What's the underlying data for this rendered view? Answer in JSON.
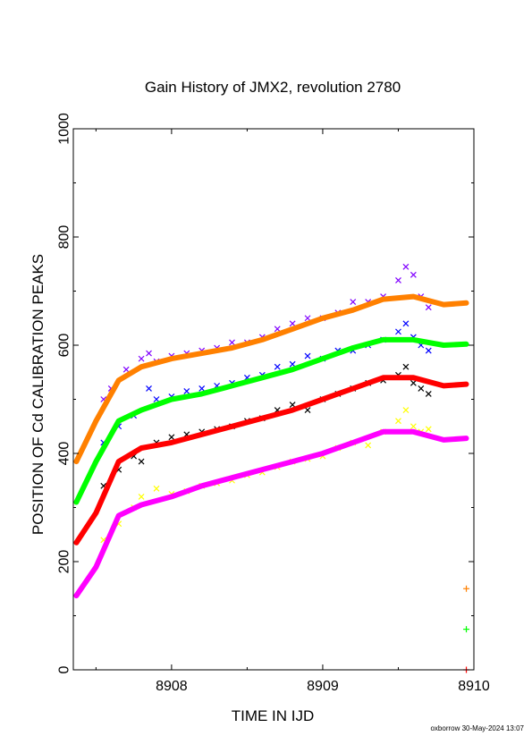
{
  "chart_data": {
    "type": "scatter",
    "title": "Gain History of JMX2, revolution 2780",
    "xlabel": "TIME IN IJD",
    "ylabel": "POSITION OF Cd CALIBRATION PEAKS",
    "xlim": [
      8907.35,
      8910.0
    ],
    "ylim": [
      0,
      1000
    ],
    "xticks": [
      8908,
      8909,
      8910
    ],
    "yticks": [
      0,
      200,
      400,
      600,
      800,
      1000
    ],
    "grid": false,
    "legend": "none",
    "fit_series": [
      {
        "color": "#ff8000",
        "x": [
          8907.37,
          8907.5,
          8907.65,
          8907.8,
          8908.0,
          8908.2,
          8908.4,
          8908.6,
          8908.8,
          8909.0,
          8909.2,
          8909.4,
          8909.6,
          8909.8,
          8909.95
        ],
        "y": [
          385,
          460,
          535,
          560,
          575,
          585,
          595,
          610,
          630,
          650,
          665,
          685,
          690,
          675,
          678
        ]
      },
      {
        "color": "#00ff00",
        "x": [
          8907.37,
          8907.5,
          8907.65,
          8907.8,
          8908.0,
          8908.2,
          8908.4,
          8908.6,
          8908.8,
          8909.0,
          8909.2,
          8909.4,
          8909.6,
          8909.8,
          8909.95
        ],
        "y": [
          310,
          385,
          460,
          480,
          500,
          510,
          525,
          540,
          555,
          575,
          595,
          610,
          610,
          600,
          602
        ]
      },
      {
        "color": "#ff0000",
        "x": [
          8907.37,
          8907.5,
          8907.65,
          8907.8,
          8908.0,
          8908.2,
          8908.4,
          8908.6,
          8908.8,
          8909.0,
          8909.2,
          8909.4,
          8909.6,
          8909.8,
          8909.95
        ],
        "y": [
          235,
          290,
          385,
          410,
          420,
          435,
          450,
          465,
          480,
          500,
          520,
          540,
          540,
          525,
          528
        ]
      },
      {
        "color": "#ff00ff",
        "x": [
          8907.37,
          8907.5,
          8907.65,
          8907.8,
          8908.0,
          8908.2,
          8908.4,
          8908.6,
          8908.8,
          8909.0,
          8909.2,
          8909.4,
          8909.6,
          8909.8,
          8909.95
        ],
        "y": [
          137,
          190,
          285,
          305,
          320,
          340,
          355,
          370,
          385,
          400,
          420,
          440,
          440,
          425,
          428
        ]
      }
    ],
    "scatter_series": [
      {
        "color": "#8000ff",
        "x": [
          8907.55,
          8907.6,
          8907.7,
          8907.8,
          8907.85,
          8907.9,
          8908.0,
          8908.1,
          8908.2,
          8908.3,
          8908.4,
          8908.5,
          8908.6,
          8908.7,
          8908.8,
          8908.9,
          8909.0,
          8909.1,
          8909.2,
          8909.3,
          8909.4,
          8909.5,
          8909.55,
          8909.6,
          8909.65,
          8909.7
        ],
        "y": [
          500,
          520,
          555,
          575,
          585,
          570,
          580,
          585,
          590,
          595,
          605,
          605,
          615,
          630,
          640,
          650,
          650,
          660,
          680,
          680,
          690,
          720,
          745,
          730,
          690,
          670
        ]
      },
      {
        "color": "#0000ff",
        "x": [
          8907.55,
          8907.65,
          8907.75,
          8907.85,
          8907.9,
          8908.0,
          8908.1,
          8908.2,
          8908.3,
          8908.4,
          8908.5,
          8908.6,
          8908.7,
          8908.8,
          8908.9,
          8909.0,
          8909.1,
          8909.2,
          8909.3,
          8909.4,
          8909.5,
          8909.55,
          8909.6,
          8909.65,
          8909.7
        ],
        "y": [
          420,
          450,
          470,
          520,
          500,
          505,
          515,
          520,
          525,
          530,
          540,
          545,
          560,
          565,
          580,
          575,
          590,
          590,
          600,
          610,
          625,
          640,
          615,
          600,
          590
        ]
      },
      {
        "color": "#000000",
        "x": [
          8907.55,
          8907.65,
          8907.75,
          8907.8,
          8907.9,
          8908.0,
          8908.1,
          8908.2,
          8908.3,
          8908.4,
          8908.5,
          8908.6,
          8908.7,
          8908.8,
          8908.9,
          8909.0,
          8909.1,
          8909.2,
          8909.3,
          8909.4,
          8909.5,
          8909.55,
          8909.6,
          8909.65,
          8909.7
        ],
        "y": [
          340,
          370,
          395,
          385,
          420,
          430,
          435,
          440,
          445,
          450,
          460,
          465,
          480,
          490,
          480,
          500,
          510,
          520,
          530,
          535,
          545,
          560,
          530,
          520,
          510
        ]
      },
      {
        "color": "#ffff00",
        "x": [
          8907.55,
          8907.65,
          8907.75,
          8907.8,
          8907.9,
          8908.0,
          8908.1,
          8908.2,
          8908.3,
          8908.4,
          8908.5,
          8908.6,
          8908.7,
          8908.8,
          8908.9,
          8909.0,
          8909.1,
          8909.2,
          8909.3,
          8909.4,
          8909.5,
          8909.55,
          8909.6,
          8909.65,
          8909.7
        ],
        "y": [
          240,
          270,
          300,
          320,
          335,
          325,
          330,
          340,
          345,
          350,
          360,
          365,
          375,
          385,
          390,
          395,
          410,
          420,
          415,
          440,
          460,
          480,
          450,
          440,
          445
        ]
      }
    ],
    "end_markers": [
      {
        "color": "#ff8000",
        "x": 8909.95,
        "y": 150
      },
      {
        "color": "#00ff00",
        "x": 8909.95,
        "y": 75
      },
      {
        "color": "#ff0000",
        "x": 8909.95,
        "y": 0
      }
    ]
  },
  "footer": "oxborrow 30-May-2024 13:07"
}
